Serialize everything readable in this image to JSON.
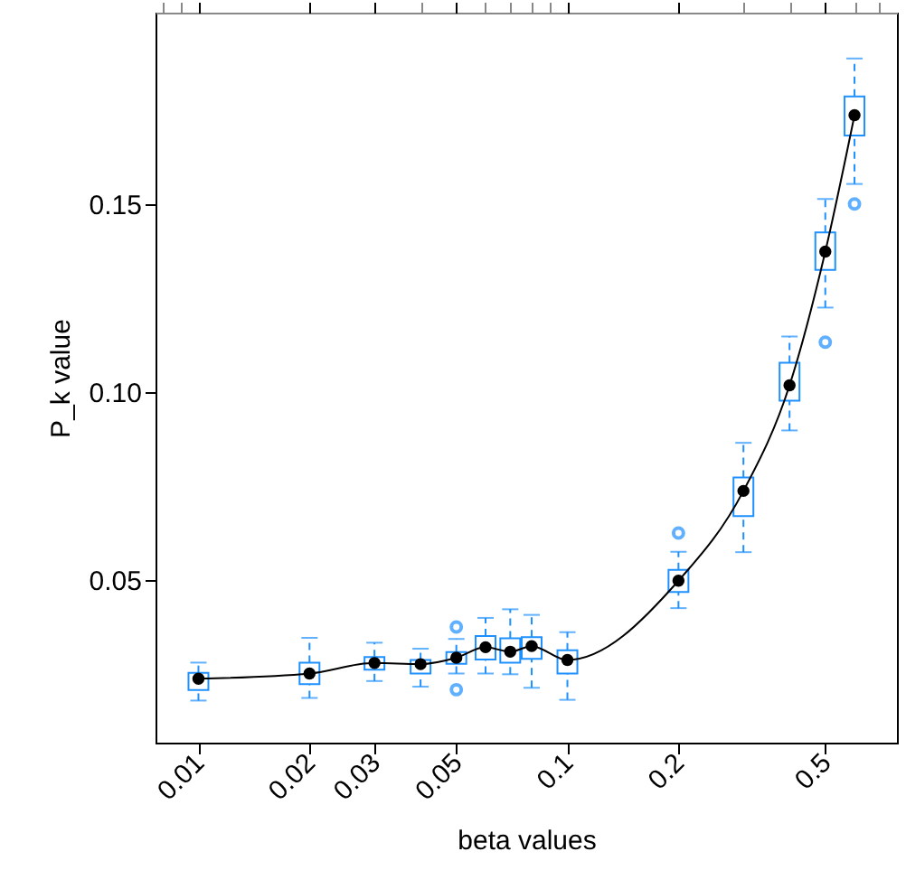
{
  "chart_data": {
    "type": "box",
    "xlabel": "beta values",
    "ylabel": "P_k value",
    "log": "x",
    "grid": false,
    "x": [
      0.01,
      0.02,
      0.03,
      0.04,
      0.05,
      0.06,
      0.07,
      0.08,
      0.1,
      0.2,
      0.3,
      0.4,
      0.5,
      0.6
    ],
    "xlim": [
      0.00765,
      0.782
    ],
    "xticks": [
      0.01,
      0.02,
      0.03,
      0.05,
      0.1,
      0.2,
      0.5
    ],
    "ylim": [
      0.0067,
      0.201
    ],
    "yticks": [
      {
        "value": 0.05,
        "label": "0.05"
      },
      {
        "value": 0.1,
        "label": "0.10"
      },
      {
        "value": 0.15,
        "label": "0.15"
      }
    ],
    "series": [
      {
        "color": "#1e90ff",
        "boxes": [
          {
            "low": 0.0179,
            "q1": 0.0207,
            "median": 0.0237,
            "q3": 0.0253,
            "high": 0.028
          },
          {
            "low": 0.0186,
            "q1": 0.0223,
            "median": 0.0251,
            "q3": 0.028,
            "high": 0.0346
          },
          {
            "low": 0.0231,
            "q1": 0.0261,
            "median": 0.0279,
            "q3": 0.0295,
            "high": 0.0333
          },
          {
            "low": 0.0216,
            "q1": 0.0251,
            "median": 0.0276,
            "q3": 0.0287,
            "high": 0.0317
          },
          {
            "low": 0.0251,
            "q1": 0.0277,
            "median": 0.0293,
            "q3": 0.0308,
            "high": 0.0343,
            "outliers": [
              0.0375,
              0.0208
            ]
          },
          {
            "low": 0.0251,
            "q1": 0.0288,
            "median": 0.0321,
            "q3": 0.0351,
            "high": 0.0399
          },
          {
            "low": 0.0249,
            "q1": 0.028,
            "median": 0.0309,
            "q3": 0.0345,
            "high": 0.0422
          },
          {
            "low": 0.0213,
            "q1": 0.029,
            "median": 0.0324,
            "q3": 0.0348,
            "high": 0.0407
          },
          {
            "low": 0.0181,
            "q1": 0.0251,
            "median": 0.0287,
            "q3": 0.0313,
            "high": 0.0361
          },
          {
            "low": 0.0425,
            "q1": 0.0468,
            "median": 0.0498,
            "q3": 0.0527,
            "high": 0.0575,
            "outliers": [
              0.0625
            ]
          },
          {
            "low": 0.0574,
            "q1": 0.067,
            "median": 0.0737,
            "q3": 0.0773,
            "high": 0.0865
          },
          {
            "low": 0.0898,
            "q1": 0.0977,
            "median": 0.1018,
            "q3": 0.1078,
            "high": 0.1148
          },
          {
            "low": 0.1225,
            "q1": 0.1325,
            "median": 0.1374,
            "q3": 0.1425,
            "high": 0.1514,
            "outliers": [
              0.1133
            ]
          },
          {
            "low": 0.1554,
            "q1": 0.1683,
            "median": 0.1737,
            "q3": 0.1787,
            "high": 0.1888,
            "outliers": [
              0.1501
            ]
          }
        ]
      },
      {
        "type": "line",
        "color": "#000000",
        "marker": "circle",
        "line_style": "solid",
        "values": [
          0.0237,
          0.0251,
          0.0279,
          0.0276,
          0.0293,
          0.0321,
          0.0309,
          0.0324,
          0.0287,
          0.0498,
          0.0737,
          0.1018,
          0.1374,
          0.1737
        ]
      }
    ]
  }
}
